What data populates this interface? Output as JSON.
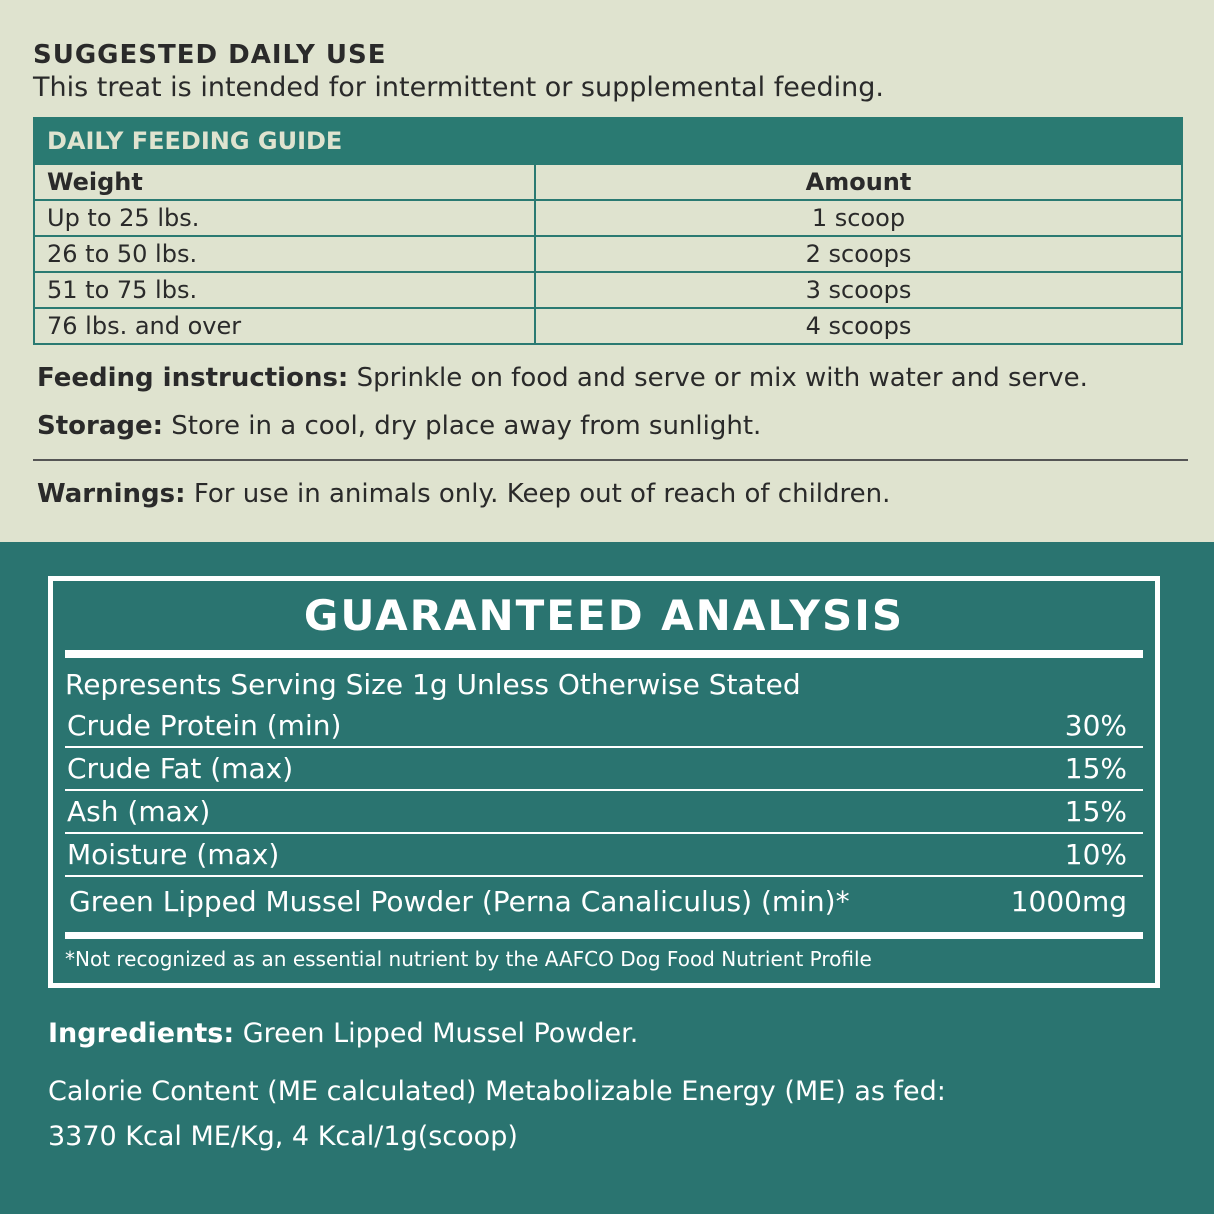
{
  "usage": {
    "heading": "SUGGESTED DAILY USE",
    "subheading": "This treat is intended for intermittent or supplemental feeding."
  },
  "table": {
    "title": "DAILY FEEDING GUIDE",
    "header": [
      "Weight",
      "Amount"
    ],
    "rows": [
      [
        "Up to 25 lbs.",
        "1 scoop"
      ],
      [
        "26 to 50 lbs.",
        "2 scoops"
      ],
      [
        "51 to 75 lbs.",
        "3 scoops"
      ],
      [
        "76 lbs. and over",
        "4 scoops"
      ]
    ]
  },
  "notes": [
    {
      "label": "Feeding instructions:",
      "text": "Sprinkle on food and serve or mix with water and serve."
    },
    {
      "label": "Storage:",
      "text": "Store in a cool, dry place away from sunlight."
    },
    {
      "label": "Warnings:",
      "text": "For use in animals only. Keep out of reach of children."
    }
  ],
  "analysis": {
    "title": "GUARANTEED ANALYSIS",
    "serving": "Represents Serving Size 1g Unless Otherwise Stated",
    "rows": [
      [
        "Crude Protein (min)",
        "30%"
      ],
      [
        "Crude Fat (max)",
        "15%"
      ],
      [
        "Ash (max)",
        "15%"
      ],
      [
        "Moisture (max)",
        "10%"
      ],
      [
        "Green Lipped Mussel Powder (Perna Canaliculus) (min)*",
        "1000mg"
      ]
    ],
    "footnote": "*Not recognized as an essential nutrient by the AAFCO Dog Food Nutrient Profile"
  },
  "ingredients": {
    "label": "Ingredients:",
    "text": "Green Lipped Mussel Powder."
  },
  "calorie": [
    "Calorie Content (ME calculated) Metabolizable Energy (ME) as fed:",
    "3370 Kcal ME/Kg, 4 Kcal/1g(scoop)"
  ]
}
